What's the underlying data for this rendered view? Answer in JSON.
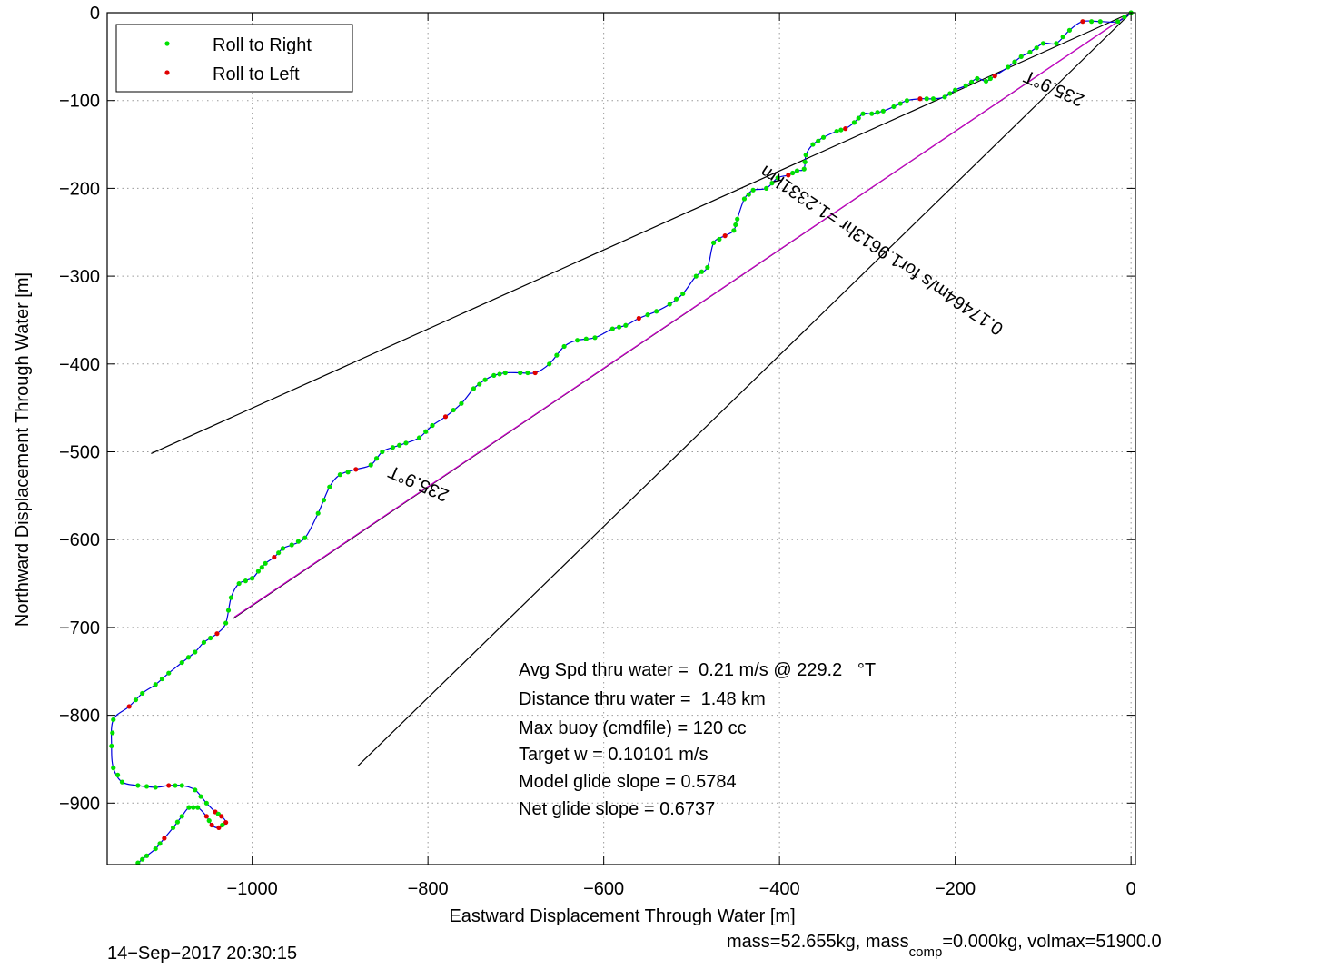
{
  "chart_data": {
    "type": "line",
    "title": "",
    "xlabel": "Eastward Displacement Through Water [m]",
    "ylabel": "Northward Displacement Through Water [m]",
    "xlim": [
      -1165,
      5
    ],
    "ylim": [
      -970,
      0
    ],
    "xticks": [
      -1000,
      -800,
      -600,
      -400,
      -200,
      0
    ],
    "yticks": [
      0,
      -100,
      -200,
      -300,
      -400,
      -500,
      -600,
      -700,
      -800,
      -900
    ],
    "xtick_labels": [
      "−1000",
      "−800",
      "−600",
      "−400",
      "−200",
      "0"
    ],
    "ytick_labels": [
      "0",
      "−100",
      "−200",
      "−300",
      "−400",
      "−500",
      "−600",
      "−700",
      "−800",
      "−900"
    ],
    "grid": true,
    "legend": {
      "placement": "top-left",
      "entries": [
        {
          "label": "Roll to Right",
          "color": "#00e000"
        },
        {
          "label": "Roll to Left",
          "color": "#e00000"
        }
      ]
    },
    "track": {
      "color": "#0000dd",
      "points": [
        [
          0,
          0
        ],
        [
          -15,
          -10
        ],
        [
          -35,
          -10
        ],
        [
          -55,
          -10
        ],
        [
          -70,
          -20
        ],
        [
          -85,
          -35
        ],
        [
          -100,
          -35
        ],
        [
          -115,
          -45
        ],
        [
          -125,
          -50
        ],
        [
          -140,
          -62
        ],
        [
          -155,
          -72
        ],
        [
          -165,
          -78
        ],
        [
          -175,
          -75
        ],
        [
          -188,
          -83
        ],
        [
          -200,
          -88
        ],
        [
          -212,
          -96
        ],
        [
          -225,
          -98
        ],
        [
          -240,
          -98
        ],
        [
          -255,
          -100
        ],
        [
          -270,
          -107
        ],
        [
          -282,
          -112
        ],
        [
          -295,
          -115
        ],
        [
          -305,
          -115
        ],
        [
          -315,
          -125
        ],
        [
          -325,
          -132
        ],
        [
          -335,
          -135
        ],
        [
          -350,
          -142
        ],
        [
          -362,
          -150
        ],
        [
          -370,
          -162
        ],
        [
          -372,
          -178
        ],
        [
          -380,
          -180
        ],
        [
          -390,
          -185
        ],
        [
          -402,
          -188
        ],
        [
          -415,
          -200
        ],
        [
          -430,
          -202
        ],
        [
          -440,
          -212
        ],
        [
          -448,
          -235
        ],
        [
          -452,
          -248
        ],
        [
          -462,
          -254
        ],
        [
          -475,
          -262
        ],
        [
          -482,
          -290
        ],
        [
          -495,
          -300
        ],
        [
          -510,
          -320
        ],
        [
          -525,
          -332
        ],
        [
          -540,
          -340
        ],
        [
          -560,
          -348
        ],
        [
          -575,
          -356
        ],
        [
          -590,
          -360
        ],
        [
          -610,
          -370
        ],
        [
          -630,
          -373
        ],
        [
          -645,
          -380
        ],
        [
          -662,
          -400
        ],
        [
          -678,
          -410
        ],
        [
          -695,
          -410
        ],
        [
          -712,
          -410
        ],
        [
          -725,
          -413
        ],
        [
          -735,
          -418
        ],
        [
          -748,
          -428
        ],
        [
          -762,
          -445
        ],
        [
          -780,
          -460
        ],
        [
          -795,
          -470
        ],
        [
          -810,
          -484
        ],
        [
          -825,
          -490
        ],
        [
          -840,
          -495
        ],
        [
          -852,
          -500
        ],
        [
          -865,
          -515
        ],
        [
          -882,
          -520
        ],
        [
          -900,
          -526
        ],
        [
          -912,
          -540
        ],
        [
          -925,
          -570
        ],
        [
          -940,
          -598
        ],
        [
          -955,
          -606
        ],
        [
          -965,
          -610
        ],
        [
          -975,
          -620
        ],
        [
          -985,
          -627
        ],
        [
          -993,
          -636
        ],
        [
          -1000,
          -644
        ],
        [
          -1015,
          -650
        ],
        [
          -1024,
          -666
        ],
        [
          -1030,
          -695
        ],
        [
          -1040,
          -707
        ],
        [
          -1055,
          -717
        ],
        [
          -1065,
          -728
        ],
        [
          -1080,
          -740
        ],
        [
          -1095,
          -752
        ],
        [
          -1110,
          -765
        ],
        [
          -1125,
          -775
        ],
        [
          -1140,
          -790
        ],
        [
          -1158,
          -805
        ],
        [
          -1160,
          -835
        ],
        [
          -1158,
          -860
        ],
        [
          -1148,
          -876
        ],
        [
          -1130,
          -880
        ],
        [
          -1110,
          -882
        ],
        [
          -1095,
          -880
        ],
        [
          -1080,
          -880
        ],
        [
          -1065,
          -885
        ],
        [
          -1052,
          -900
        ],
        [
          -1042,
          -910
        ],
        [
          -1035,
          -915
        ],
        [
          -1030,
          -922
        ],
        [
          -1038,
          -928
        ],
        [
          -1046,
          -925
        ],
        [
          -1052,
          -915
        ],
        [
          -1062,
          -905
        ],
        [
          -1072,
          -905
        ],
        [
          -1080,
          -915
        ],
        [
          -1090,
          -928
        ],
        [
          -1100,
          -940
        ],
        [
          -1110,
          -952
        ],
        [
          -1120,
          -960
        ],
        [
          -1130,
          -968
        ]
      ]
    },
    "reference_lines": [
      {
        "label": "235.9°T",
        "color": "#000000",
        "points": [
          [
            0,
            0
          ],
          [
            -1115,
            -502
          ]
        ]
      },
      {
        "label": "0.17464m/s for1.9613hr =1.2331km",
        "color": "#000000",
        "points": [
          [
            0,
            0
          ],
          [
            -1022,
            -690
          ]
        ]
      },
      {
        "label": "",
        "color": "#cc00cc",
        "points": [
          [
            0,
            0
          ],
          [
            -1020,
            -688
          ]
        ]
      },
      {
        "label": "",
        "color": "#000000",
        "points": [
          [
            0,
            0
          ],
          [
            -880,
            -858
          ]
        ]
      }
    ],
    "annotations": [
      {
        "text": "235.9°T",
        "x": -85,
        "y": -80,
        "rotate": 204
      },
      {
        "text": "0.17464m/s for1.9613hr =1.2331km",
        "x": -280,
        "y": -265,
        "rotate": 214
      },
      {
        "text": "235.9°T",
        "x": -808,
        "y": -530,
        "rotate": 204
      }
    ]
  },
  "stats": [
    "Avg Spd thru water =  0.21 m/s @ 229.2   °T",
    "Distance thru water =  1.48 km",
    "Max buoy (cmdfile) = 120 cc",
    "Target w = 0.10101 m/s",
    "Model glide slope = 0.5784",
    "Net glide slope = 0.6737"
  ],
  "footer": {
    "timestamp": "14−Sep−2017 20:30:15",
    "mass_prefix": "mass=52.655kg, mass",
    "mass_sub": "comp",
    "mass_suffix": "=0.000kg, volmax=51900.0"
  }
}
